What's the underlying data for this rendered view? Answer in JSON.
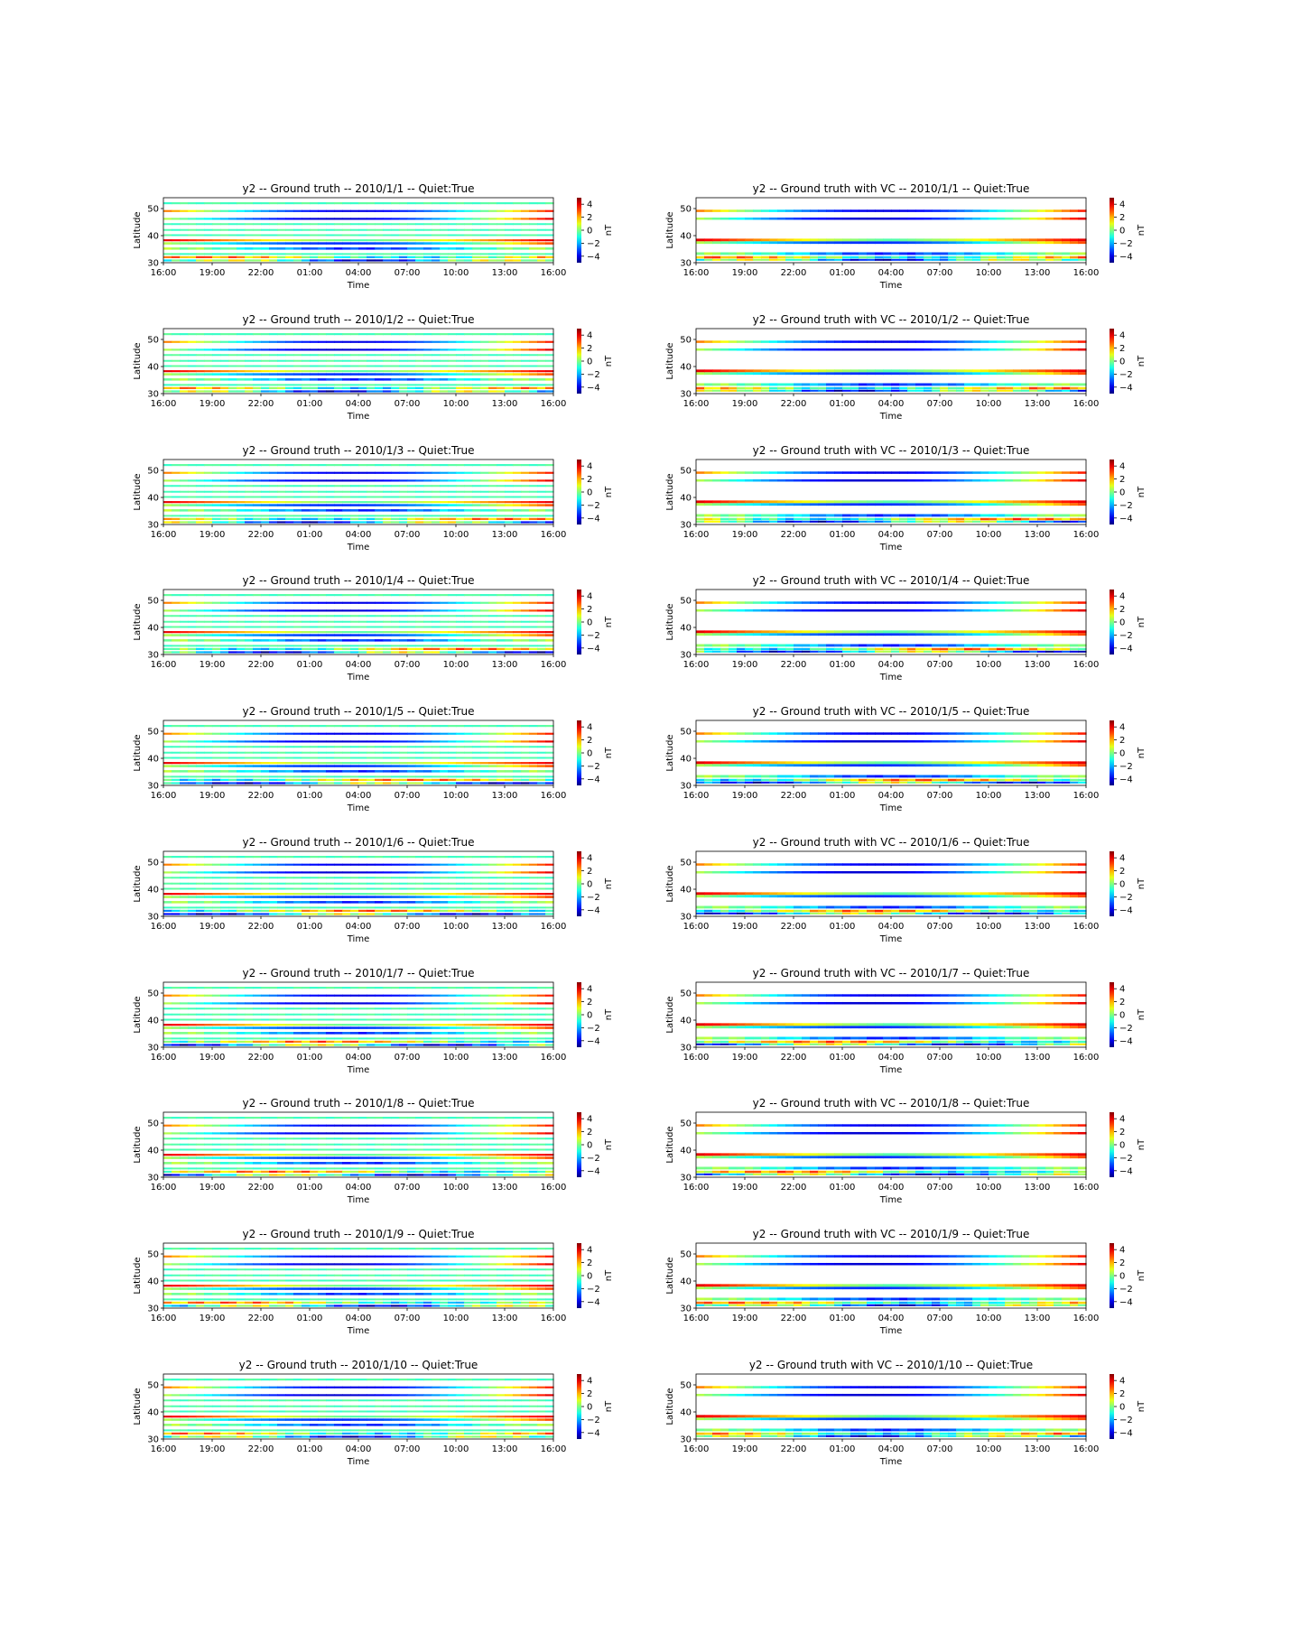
{
  "figure": {
    "colorbar_ticks": [
      "4",
      "2",
      "0",
      "−2",
      "−4"
    ],
    "colorbar_values": [
      4,
      2,
      0,
      -2,
      -4
    ],
    "colorbar_label": "nT",
    "xlabel": "Time",
    "ylabel": "Latitude",
    "x_ticks": [
      "16:00",
      "19:00",
      "22:00",
      "01:00",
      "04:00",
      "07:00",
      "10:00",
      "13:00",
      "16:00"
    ],
    "y_ticks": [
      "30",
      "40",
      "50"
    ],
    "y_tick_values": [
      30,
      40,
      50
    ]
  },
  "chart_data": [
    {
      "type": "heatmap",
      "panel": "ground_truth",
      "title": "y2 -- Ground truth -- 2010/1/1 -- Quiet:True",
      "xlabel": "Time",
      "ylabel": "Latitude",
      "ylim": [
        30,
        54
      ],
      "zlim": [
        -5,
        5
      ],
      "colormap": "jet",
      "colorbar_label": "nT"
    },
    {
      "type": "heatmap",
      "panel": "ground_truth_vc",
      "title": "y2 -- Ground truth with VC -- 2010/1/1 -- Quiet:True",
      "xlabel": "Time",
      "ylabel": "Latitude",
      "ylim": [
        30,
        54
      ],
      "zlim": [
        -5,
        5
      ],
      "colormap": "jet",
      "colorbar_label": "nT"
    },
    {
      "type": "heatmap",
      "panel": "ground_truth",
      "title": "y2 -- Ground truth -- 2010/1/2 -- Quiet:True",
      "xlabel": "Time",
      "ylabel": "Latitude",
      "ylim": [
        30,
        54
      ],
      "zlim": [
        -5,
        5
      ],
      "colormap": "jet",
      "colorbar_label": "nT"
    },
    {
      "type": "heatmap",
      "panel": "ground_truth_vc",
      "title": "y2 -- Ground truth with VC -- 2010/1/2 -- Quiet:True",
      "xlabel": "Time",
      "ylabel": "Latitude",
      "ylim": [
        30,
        54
      ],
      "zlim": [
        -5,
        5
      ],
      "colormap": "jet",
      "colorbar_label": "nT"
    },
    {
      "type": "heatmap",
      "panel": "ground_truth",
      "title": "y2 -- Ground truth -- 2010/1/3 -- Quiet:True",
      "xlabel": "Time",
      "ylabel": "Latitude",
      "ylim": [
        30,
        54
      ],
      "zlim": [
        -5,
        5
      ],
      "colormap": "jet",
      "colorbar_label": "nT"
    },
    {
      "type": "heatmap",
      "panel": "ground_truth_vc",
      "title": "y2 -- Ground truth with VC -- 2010/1/3 -- Quiet:True",
      "xlabel": "Time",
      "ylabel": "Latitude",
      "ylim": [
        30,
        54
      ],
      "zlim": [
        -5,
        5
      ],
      "colormap": "jet",
      "colorbar_label": "nT"
    },
    {
      "type": "heatmap",
      "panel": "ground_truth",
      "title": "y2 -- Ground truth -- 2010/1/4 -- Quiet:True",
      "xlabel": "Time",
      "ylabel": "Latitude",
      "ylim": [
        30,
        54
      ],
      "zlim": [
        -5,
        5
      ],
      "colormap": "jet",
      "colorbar_label": "nT"
    },
    {
      "type": "heatmap",
      "panel": "ground_truth_vc",
      "title": "y2 -- Ground truth with VC -- 2010/1/4 -- Quiet:True",
      "xlabel": "Time",
      "ylabel": "Latitude",
      "ylim": [
        30,
        54
      ],
      "zlim": [
        -5,
        5
      ],
      "colormap": "jet",
      "colorbar_label": "nT"
    },
    {
      "type": "heatmap",
      "panel": "ground_truth",
      "title": "y2 -- Ground truth -- 2010/1/5 -- Quiet:True",
      "xlabel": "Time",
      "ylabel": "Latitude",
      "ylim": [
        30,
        54
      ],
      "zlim": [
        -5,
        5
      ],
      "colormap": "jet",
      "colorbar_label": "nT"
    },
    {
      "type": "heatmap",
      "panel": "ground_truth_vc",
      "title": "y2 -- Ground truth with VC -- 2010/1/5 -- Quiet:True",
      "xlabel": "Time",
      "ylabel": "Latitude",
      "ylim": [
        30,
        54
      ],
      "zlim": [
        -5,
        5
      ],
      "colormap": "jet",
      "colorbar_label": "nT"
    },
    {
      "type": "heatmap",
      "panel": "ground_truth",
      "title": "y2 -- Ground truth -- 2010/1/6 -- Quiet:True",
      "xlabel": "Time",
      "ylabel": "Latitude",
      "ylim": [
        30,
        54
      ],
      "zlim": [
        -5,
        5
      ],
      "colormap": "jet",
      "colorbar_label": "nT"
    },
    {
      "type": "heatmap",
      "panel": "ground_truth_vc",
      "title": "y2 -- Ground truth with VC -- 2010/1/6 -- Quiet:True",
      "xlabel": "Time",
      "ylabel": "Latitude",
      "ylim": [
        30,
        54
      ],
      "zlim": [
        -5,
        5
      ],
      "colormap": "jet",
      "colorbar_label": "nT"
    },
    {
      "type": "heatmap",
      "panel": "ground_truth",
      "title": "y2 -- Ground truth -- 2010/1/7 -- Quiet:True",
      "xlabel": "Time",
      "ylabel": "Latitude",
      "ylim": [
        30,
        54
      ],
      "zlim": [
        -5,
        5
      ],
      "colormap": "jet",
      "colorbar_label": "nT"
    },
    {
      "type": "heatmap",
      "panel": "ground_truth_vc",
      "title": "y2 -- Ground truth with VC -- 2010/1/7 -- Quiet:True",
      "xlabel": "Time",
      "ylabel": "Latitude",
      "ylim": [
        30,
        54
      ],
      "zlim": [
        -5,
        5
      ],
      "colormap": "jet",
      "colorbar_label": "nT"
    },
    {
      "type": "heatmap",
      "panel": "ground_truth",
      "title": "y2 -- Ground truth -- 2010/1/8 -- Quiet:True",
      "xlabel": "Time",
      "ylabel": "Latitude",
      "ylim": [
        30,
        54
      ],
      "zlim": [
        -5,
        5
      ],
      "colormap": "jet",
      "colorbar_label": "nT"
    },
    {
      "type": "heatmap",
      "panel": "ground_truth_vc",
      "title": "y2 -- Ground truth with VC -- 2010/1/8 -- Quiet:True",
      "xlabel": "Time",
      "ylabel": "Latitude",
      "ylim": [
        30,
        54
      ],
      "zlim": [
        -5,
        5
      ],
      "colormap": "jet",
      "colorbar_label": "nT"
    },
    {
      "type": "heatmap",
      "panel": "ground_truth",
      "title": "y2 -- Ground truth -- 2010/1/9 -- Quiet:True",
      "xlabel": "Time",
      "ylabel": "Latitude",
      "ylim": [
        30,
        54
      ],
      "zlim": [
        -5,
        5
      ],
      "colormap": "jet",
      "colorbar_label": "nT"
    },
    {
      "type": "heatmap",
      "panel": "ground_truth_vc",
      "title": "y2 -- Ground truth with VC -- 2010/1/9 -- Quiet:True",
      "xlabel": "Time",
      "ylabel": "Latitude",
      "ylim": [
        30,
        54
      ],
      "zlim": [
        -5,
        5
      ],
      "colormap": "jet",
      "colorbar_label": "nT"
    },
    {
      "type": "heatmap",
      "panel": "ground_truth",
      "title": "y2 -- Ground truth -- 2010/1/10 -- Quiet:True",
      "xlabel": "Time",
      "ylabel": "Latitude",
      "ylim": [
        30,
        54
      ],
      "zlim": [
        -5,
        5
      ],
      "colormap": "jet",
      "colorbar_label": "nT"
    },
    {
      "type": "heatmap",
      "panel": "ground_truth_vc",
      "title": "y2 -- Ground truth with VC -- 2010/1/10 -- Quiet:True",
      "xlabel": "Time",
      "ylabel": "Latitude",
      "ylim": [
        30,
        54
      ],
      "zlim": [
        -5,
        5
      ],
      "colormap": "jet",
      "colorbar_label": "nT"
    }
  ]
}
